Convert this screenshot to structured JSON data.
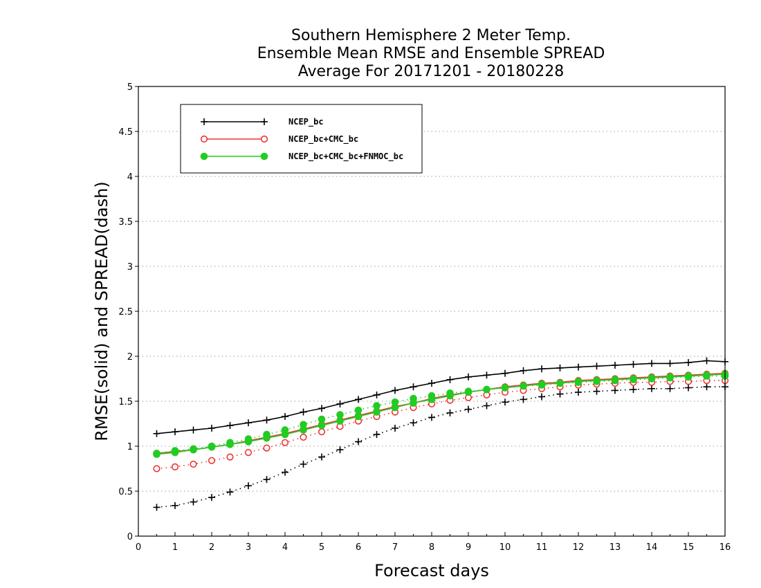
{
  "chart_data": {
    "type": "line",
    "title": [
      "Southern Hemisphere 2 Meter Temp.",
      "Ensemble Mean RMSE and Ensemble SPREAD",
      "Average For 20171201 - 20180228"
    ],
    "xlabel": "Forecast days",
    "ylabel": "RMSE(solid) and SPREAD(dash)",
    "xlim": [
      0,
      16
    ],
    "ylim": [
      0,
      5
    ],
    "xticks": [
      "0",
      "1",
      "2",
      "3",
      "4",
      "5",
      "6",
      "7",
      "8",
      "9",
      "10",
      "11",
      "12",
      "13",
      "14",
      "15",
      "16"
    ],
    "yticks": [
      "0",
      "0.5",
      "1",
      "1.5",
      "2",
      "2.5",
      "3",
      "3.5",
      "4",
      "4.5",
      "5"
    ],
    "grid": "horizontal-dotted",
    "legend_position": "top-left",
    "x": [
      0.5,
      1,
      1.5,
      2,
      2.5,
      3,
      3.5,
      4,
      4.5,
      5,
      5.5,
      6,
      6.5,
      7,
      7.5,
      8,
      8.5,
      9,
      9.5,
      10,
      10.5,
      11,
      11.5,
      12,
      12.5,
      13,
      13.5,
      14,
      14.5,
      15,
      15.5,
      16
    ],
    "series": [
      {
        "name": "NCEP_bc",
        "color": "#000000",
        "marker": "plus",
        "rmse": [
          1.14,
          1.16,
          1.18,
          1.2,
          1.23,
          1.26,
          1.29,
          1.33,
          1.38,
          1.42,
          1.47,
          1.52,
          1.57,
          1.62,
          1.66,
          1.7,
          1.74,
          1.77,
          1.79,
          1.81,
          1.84,
          1.86,
          1.87,
          1.88,
          1.89,
          1.9,
          1.91,
          1.92,
          1.92,
          1.93,
          1.95,
          1.94
        ],
        "spread": [
          0.32,
          0.34,
          0.38,
          0.43,
          0.49,
          0.56,
          0.63,
          0.71,
          0.8,
          0.88,
          0.96,
          1.05,
          1.13,
          1.2,
          1.26,
          1.32,
          1.37,
          1.41,
          1.45,
          1.49,
          1.52,
          1.55,
          1.58,
          1.6,
          1.61,
          1.62,
          1.63,
          1.64,
          1.64,
          1.65,
          1.66,
          1.66
        ]
      },
      {
        "name": "NCEP_bc+CMC_bc",
        "color": "#ee3333",
        "marker": "open-circle",
        "rmse": [
          0.92,
          0.94,
          0.96,
          0.99,
          1.02,
          1.06,
          1.1,
          1.14,
          1.19,
          1.24,
          1.29,
          1.34,
          1.39,
          1.44,
          1.48,
          1.53,
          1.57,
          1.6,
          1.63,
          1.66,
          1.68,
          1.7,
          1.71,
          1.73,
          1.74,
          1.75,
          1.76,
          1.77,
          1.78,
          1.79,
          1.8,
          1.81
        ],
        "spread": [
          0.75,
          0.77,
          0.8,
          0.84,
          0.88,
          0.93,
          0.98,
          1.04,
          1.1,
          1.16,
          1.22,
          1.28,
          1.33,
          1.38,
          1.43,
          1.47,
          1.51,
          1.54,
          1.57,
          1.6,
          1.62,
          1.64,
          1.66,
          1.68,
          1.69,
          1.7,
          1.71,
          1.71,
          1.72,
          1.72,
          1.73,
          1.73
        ]
      },
      {
        "name": "NCEP_bc+CMC_bc+FNMOC_bc",
        "color": "#22cc22",
        "marker": "filled-circle",
        "rmse": [
          0.91,
          0.93,
          0.96,
          0.99,
          1.02,
          1.05,
          1.09,
          1.13,
          1.18,
          1.23,
          1.28,
          1.33,
          1.38,
          1.43,
          1.48,
          1.52,
          1.56,
          1.6,
          1.63,
          1.65,
          1.67,
          1.69,
          1.7,
          1.72,
          1.73,
          1.74,
          1.75,
          1.76,
          1.77,
          1.78,
          1.79,
          1.8
        ],
        "spread": [
          0.92,
          0.95,
          0.97,
          1.0,
          1.04,
          1.08,
          1.13,
          1.18,
          1.24,
          1.3,
          1.35,
          1.4,
          1.45,
          1.49,
          1.53,
          1.56,
          1.59,
          1.61,
          1.63,
          1.65,
          1.67,
          1.68,
          1.7,
          1.71,
          1.72,
          1.73,
          1.74,
          1.75,
          1.76,
          1.77,
          1.78,
          1.78
        ]
      }
    ]
  }
}
